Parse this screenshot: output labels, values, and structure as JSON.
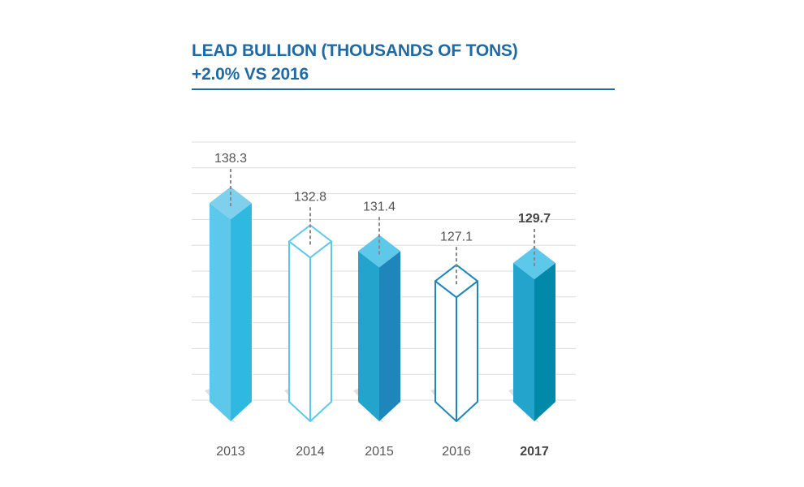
{
  "header": {
    "title_line1": "LEAD BULLION (THOUSANDS OF TONS)",
    "title_line2": "+2.0% VS 2016"
  },
  "colors": {
    "title": "#1f6aa5",
    "grid": "#dddddd",
    "connector": "#888888"
  },
  "chart_data": {
    "type": "bar",
    "title": "LEAD BULLION (THOUSANDS OF TONS)",
    "subtitle": "+2.0% VS 2016",
    "categories": [
      "2013",
      "2014",
      "2015",
      "2016",
      "2017"
    ],
    "values": [
      138.3,
      132.8,
      131.4,
      127.1,
      129.7
    ],
    "value_labels": [
      "138.3",
      "132.8",
      "131.4",
      "127.1",
      "129.7"
    ],
    "highlight": [
      false,
      false,
      false,
      false,
      true
    ],
    "bar_styles": [
      {
        "style": "solid",
        "top": "#7fd0ec",
        "front": "#5ec8ea",
        "side": "#2fb9e1",
        "outline": "#5ec8ea"
      },
      {
        "style": "outline",
        "top": "#ffffff",
        "front": "#ffffff",
        "side": "#ffffff",
        "outline": "#5ec8ea"
      },
      {
        "style": "solid",
        "top": "#5ec8ea",
        "front": "#23a4cc",
        "side": "#1e86bb",
        "outline": "#23a4cc"
      },
      {
        "style": "outline",
        "top": "#ffffff",
        "front": "#ffffff",
        "side": "#ffffff",
        "outline": "#1e86bb"
      },
      {
        "style": "solid",
        "top": "#5ec8ea",
        "front": "#23a4cc",
        "side": "#0089a8",
        "outline": "#23a4cc"
      }
    ],
    "ylim": [
      110,
      140
    ],
    "grid": true,
    "xlabel": "",
    "ylabel": ""
  }
}
